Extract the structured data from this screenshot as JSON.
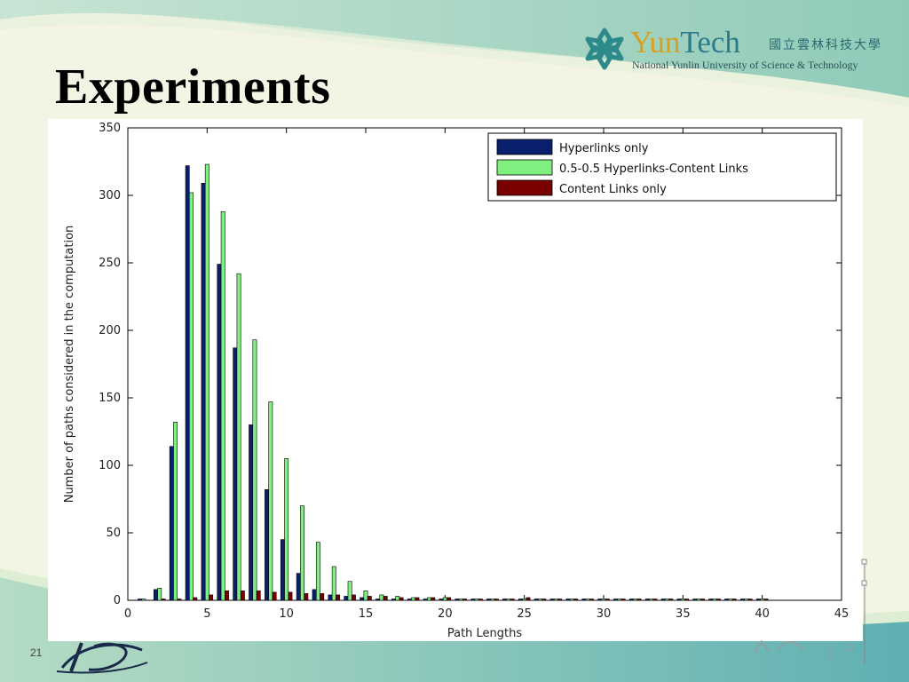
{
  "slide": {
    "title": "Experiments",
    "number": "21",
    "logo": {
      "name_part1": "Yun",
      "name_part2": "Tech",
      "name_cn": "國立雲林科技大學",
      "name_en": "National Yunlin University of Science & Technology"
    },
    "colors": {
      "accent": "#2d7a88",
      "gold": "#d9a020"
    }
  },
  "chart_data": {
    "type": "bar",
    "title": "",
    "xlabel": "Path Lengths",
    "ylabel": "Number of paths considered in the computation",
    "xlim": [
      0,
      45
    ],
    "ylim": [
      0,
      350
    ],
    "xticks": [
      0,
      5,
      10,
      15,
      20,
      25,
      30,
      35,
      40,
      45
    ],
    "yticks": [
      0,
      50,
      100,
      150,
      200,
      250,
      300,
      350
    ],
    "x": [
      1,
      2,
      3,
      4,
      5,
      6,
      7,
      8,
      9,
      10,
      11,
      12,
      13,
      14,
      15,
      16,
      17,
      18,
      19,
      20,
      21,
      22,
      23,
      24,
      25,
      26,
      27,
      28,
      29,
      30,
      31,
      32,
      33,
      34,
      35,
      36,
      37,
      38,
      39,
      40
    ],
    "legend_position": "top-right",
    "grid": false,
    "series": [
      {
        "name": "Hyperlinks only",
        "color": "#0a1f6e",
        "values": [
          1,
          8,
          114,
          322,
          309,
          249,
          187,
          130,
          82,
          45,
          20,
          8,
          4,
          3,
          2,
          1,
          1,
          1,
          1,
          1,
          1,
          1,
          1,
          1,
          1,
          1,
          1,
          1,
          1,
          1,
          1,
          1,
          1,
          1,
          1,
          1,
          1,
          1,
          1,
          1
        ]
      },
      {
        "name": "0.5-0.5 Hyperlinks-Content Links",
        "color": "#7fef7f",
        "values": [
          1,
          9,
          132,
          302,
          323,
          288,
          242,
          193,
          147,
          105,
          70,
          43,
          25,
          14,
          7,
          4,
          3,
          2,
          2,
          2,
          1,
          1,
          1,
          1,
          1,
          1,
          1,
          1,
          1,
          1,
          1,
          1,
          1,
          1,
          1,
          1,
          1,
          1,
          1,
          1
        ]
      },
      {
        "name": "Content Links only",
        "color": "#7a0000",
        "values": [
          0,
          1,
          1,
          2,
          4,
          7,
          7,
          7,
          6,
          6,
          5,
          5,
          4,
          4,
          3,
          3,
          2,
          2,
          2,
          2,
          1,
          1,
          1,
          1,
          2,
          1,
          1,
          1,
          1,
          1,
          1,
          1,
          1,
          1,
          1,
          1,
          1,
          1,
          1,
          1
        ]
      }
    ]
  }
}
